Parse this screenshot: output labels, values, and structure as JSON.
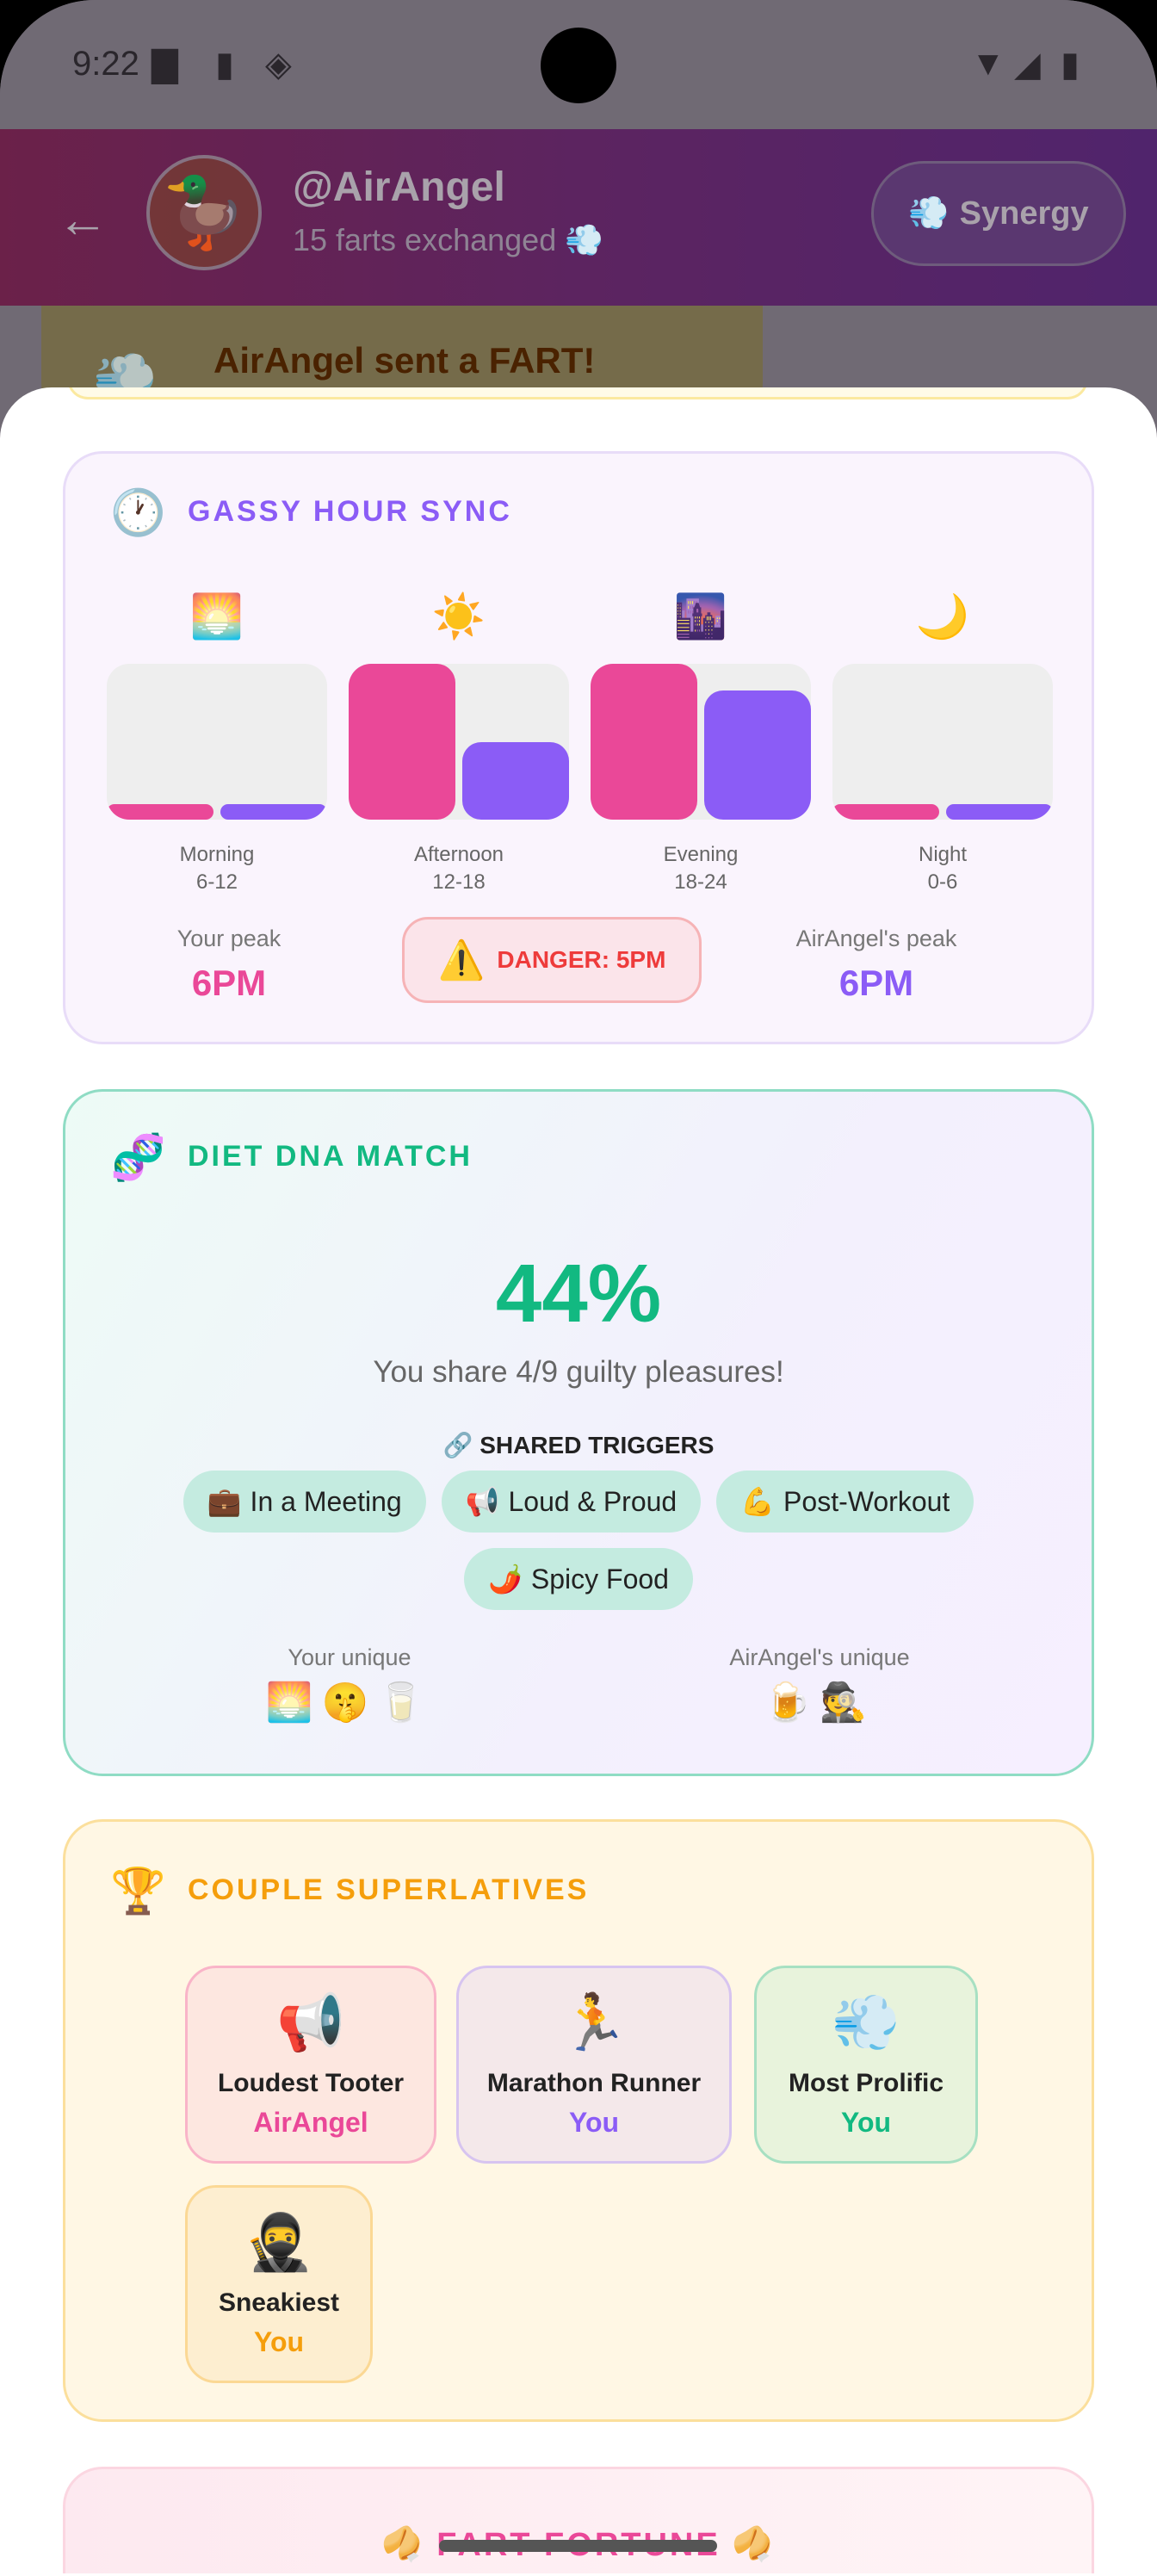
{
  "status_bar": {
    "time": "9:22"
  },
  "header": {
    "username": "@AirAngel",
    "subtitle": "15 farts exchanged 💨",
    "synergy_label": "Synergy",
    "synergy_icon": "💨",
    "avatar": "🦆"
  },
  "toast": {
    "icon": "💨",
    "text": "AirAngel sent a FART!"
  },
  "gassy_hour": {
    "icon": "🕐",
    "title": "GASSY HOUR SYNC",
    "colors": {
      "you": "#ea4898",
      "them": "#8b5cf6"
    },
    "periods": [
      {
        "emoji": "🌅",
        "label": "Morning",
        "range": "6-12",
        "you": 0,
        "them": 0
      },
      {
        "emoji": "☀️",
        "label": "Afternoon",
        "range": "12-18",
        "you": 1.0,
        "them": 0.5
      },
      {
        "emoji": "🌆",
        "label": "Evening",
        "range": "18-24",
        "you": 1.0,
        "them": 0.83
      },
      {
        "emoji": "🌙",
        "label": "Night",
        "range": "0-6",
        "you": 0,
        "them": 0
      }
    ],
    "your_peak_label": "Your peak",
    "your_peak": "6PM",
    "danger_icon": "⚠️",
    "danger": "DANGER: 5PM",
    "their_peak_label": "AirAngel's peak",
    "their_peak": "6PM"
  },
  "diet_dna": {
    "icon": "🧬",
    "title": "DIET DNA MATCH",
    "percent": "44%",
    "share_text": "You share 4/9 guilty pleasures!",
    "shared_title": "🔗 SHARED TRIGGERS",
    "shared": [
      {
        "emoji": "💼",
        "label": "In a Meeting"
      },
      {
        "emoji": "📢",
        "label": "Loud & Proud"
      },
      {
        "emoji": "💪",
        "label": "Post-Workout"
      },
      {
        "emoji": "🌶️",
        "label": "Spicy Food"
      }
    ],
    "your_unique_label": "Your unique",
    "your_unique": "🌅🤫🥛",
    "their_unique_label": "AirAngel's unique",
    "their_unique": "🍺🕵️"
  },
  "superlatives": {
    "icon": "🏆",
    "title": "COUPLE SUPERLATIVES",
    "items": [
      {
        "emoji": "📢",
        "name": "Loudest Tooter",
        "winner": "AirAngel",
        "color": "#ea4898"
      },
      {
        "emoji": "🏃",
        "name": "Marathon Runner",
        "winner": "You",
        "color": "#8b5cf6"
      },
      {
        "emoji": "💨",
        "name": "Most Prolific",
        "winner": "You",
        "color": "#12b981"
      },
      {
        "emoji": "🥷",
        "name": "Sneakiest",
        "winner": "You",
        "color": "#f59e0b"
      }
    ]
  },
  "fortune": {
    "icon": "🥠",
    "title": "FART FORTUNE"
  }
}
